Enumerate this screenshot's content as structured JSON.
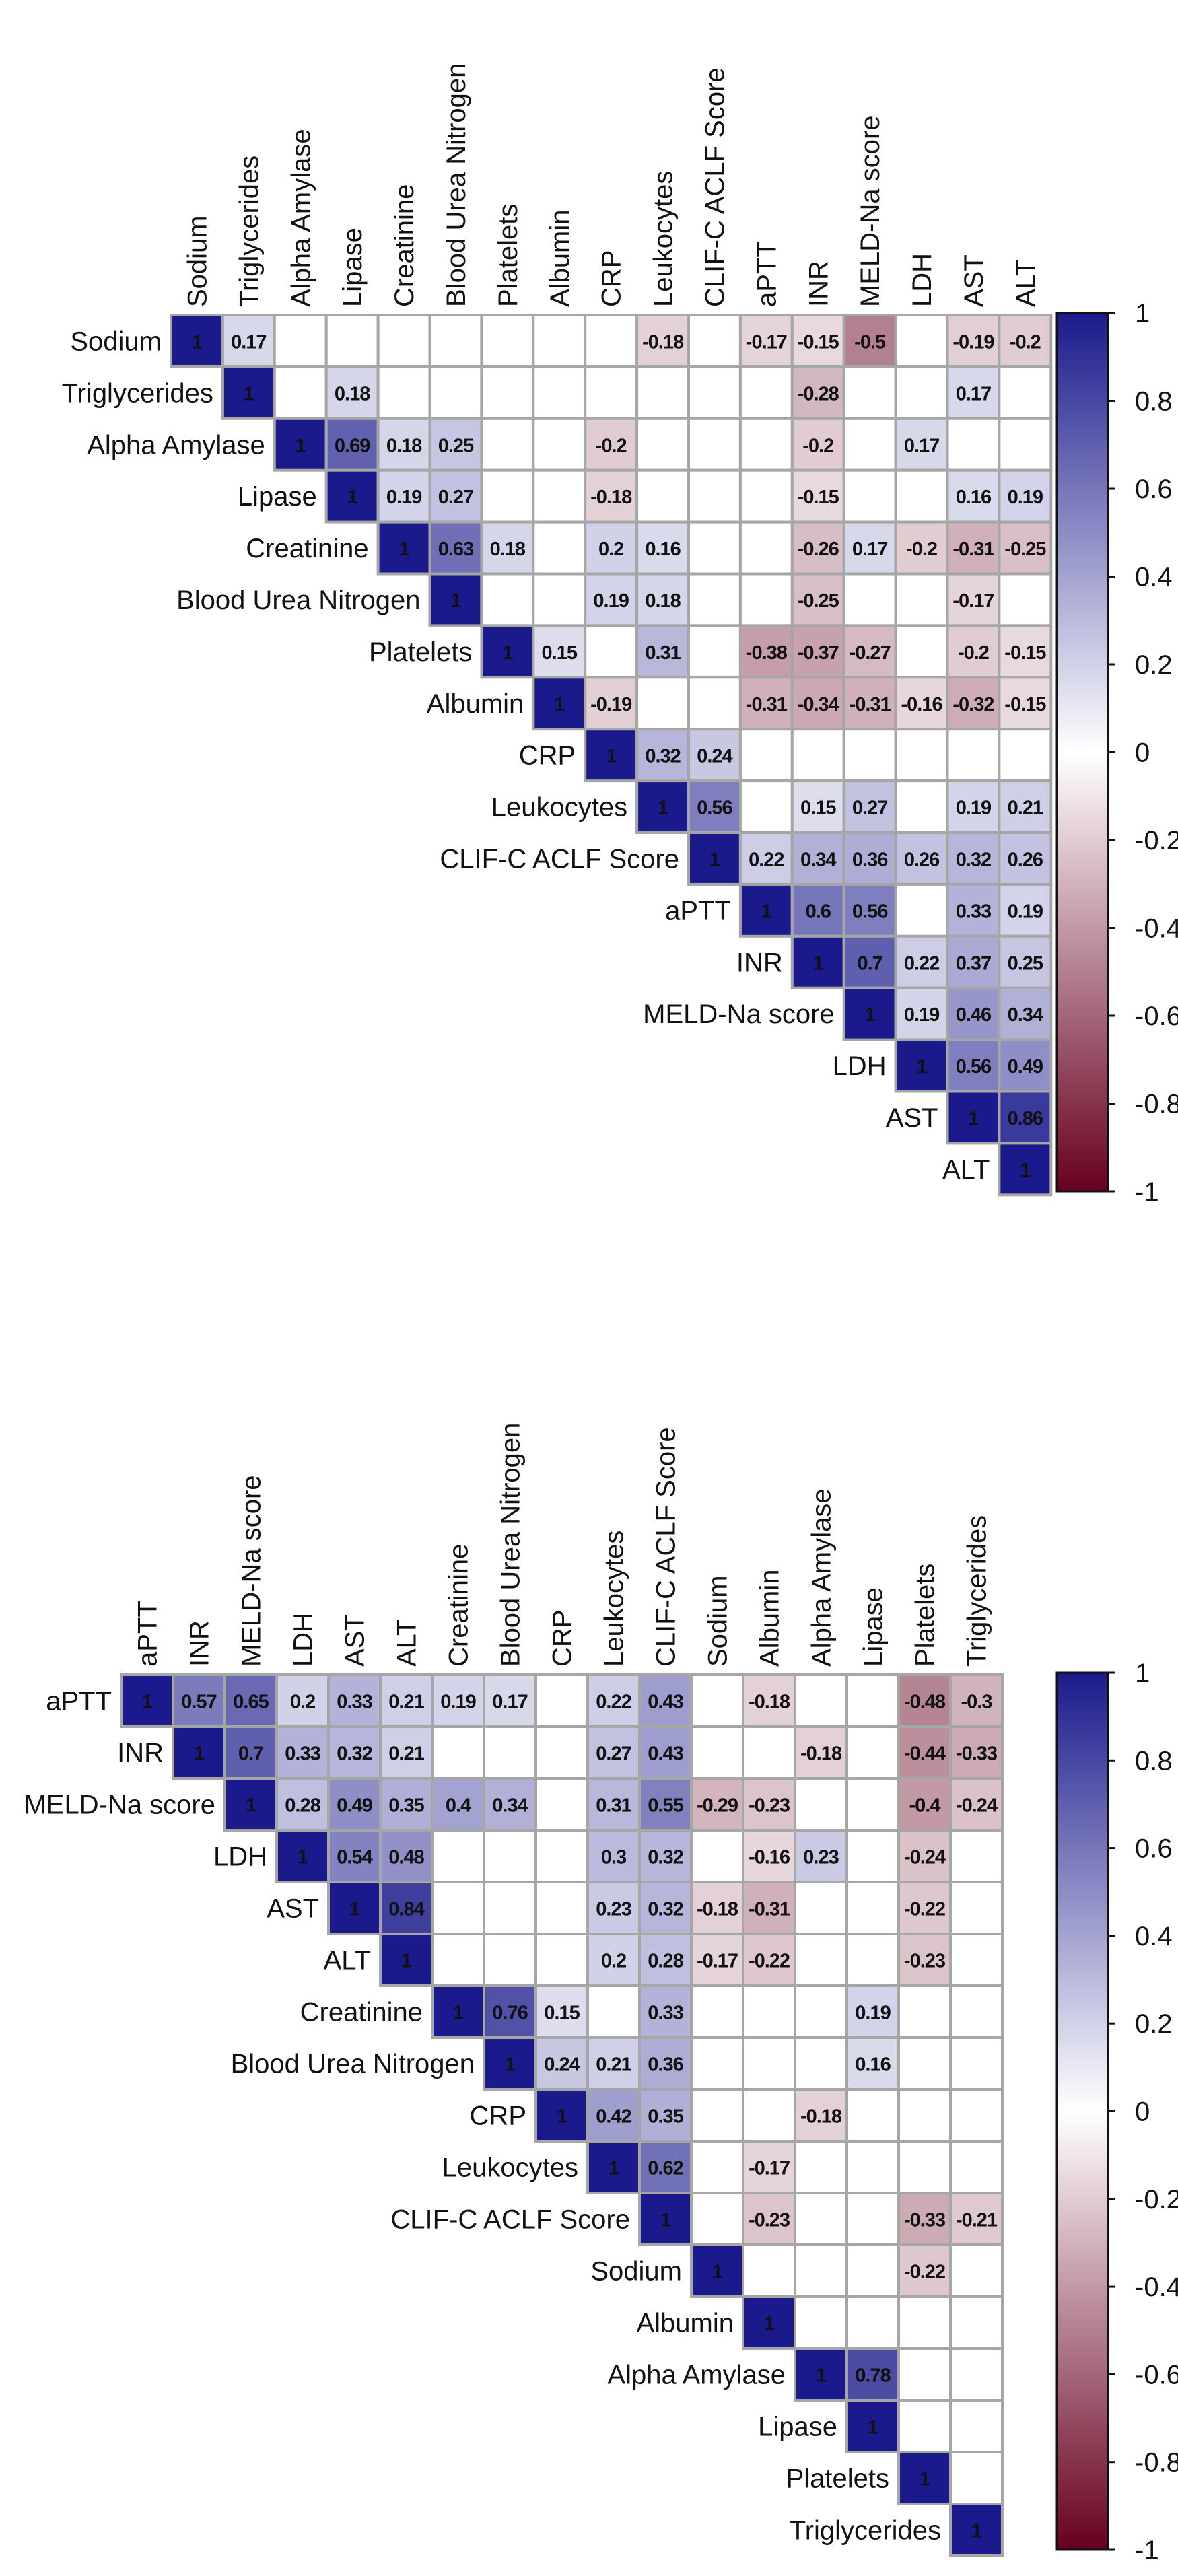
{
  "chart_data": [
    {
      "type": "heatmap",
      "title": "",
      "variables": [
        "Sodium",
        "Triglycerides",
        "Alpha Amylase",
        "Lipase",
        "Creatinine",
        "Blood Urea Nitrogen",
        "Platelets",
        "Albumin",
        "CRP",
        "Leukocytes",
        "CLIF-C ACLF Score",
        "aPTT",
        "INR",
        "MELD-Na score",
        "LDH",
        "AST",
        "ALT"
      ],
      "matrix": [
        [
          1,
          0.17,
          null,
          null,
          null,
          null,
          null,
          null,
          null,
          -0.18,
          null,
          -0.17,
          -0.15,
          -0.5,
          null,
          -0.19,
          -0.2
        ],
        [
          null,
          1,
          null,
          0.18,
          null,
          null,
          null,
          null,
          null,
          null,
          null,
          null,
          -0.28,
          null,
          null,
          0.17,
          null
        ],
        [
          null,
          null,
          1,
          0.69,
          0.18,
          0.25,
          null,
          null,
          -0.2,
          null,
          null,
          null,
          -0.2,
          null,
          0.17,
          null,
          null
        ],
        [
          null,
          null,
          null,
          1,
          0.19,
          0.27,
          null,
          null,
          -0.18,
          null,
          null,
          null,
          -0.15,
          null,
          null,
          0.16,
          0.19
        ],
        [
          null,
          null,
          null,
          null,
          1,
          0.63,
          0.18,
          null,
          0.2,
          0.16,
          null,
          null,
          -0.26,
          0.17,
          -0.2,
          -0.31,
          -0.25
        ],
        [
          null,
          null,
          null,
          null,
          null,
          1,
          null,
          null,
          0.19,
          0.18,
          null,
          null,
          -0.25,
          null,
          null,
          -0.17,
          null
        ],
        [
          null,
          null,
          null,
          null,
          null,
          null,
          1,
          0.15,
          null,
          0.31,
          null,
          -0.38,
          -0.37,
          -0.27,
          null,
          -0.2,
          -0.15
        ],
        [
          null,
          null,
          null,
          null,
          null,
          null,
          null,
          1,
          -0.19,
          null,
          null,
          -0.31,
          -0.34,
          -0.31,
          -0.16,
          -0.32,
          -0.15
        ],
        [
          null,
          null,
          null,
          null,
          null,
          null,
          null,
          null,
          1,
          0.32,
          0.24,
          null,
          null,
          null,
          null,
          null,
          null
        ],
        [
          null,
          null,
          null,
          null,
          null,
          null,
          null,
          null,
          null,
          1,
          0.56,
          null,
          0.15,
          0.27,
          null,
          0.19,
          0.21
        ],
        [
          null,
          null,
          null,
          null,
          null,
          null,
          null,
          null,
          null,
          null,
          1,
          0.22,
          0.34,
          0.36,
          0.26,
          0.32,
          0.26
        ],
        [
          null,
          null,
          null,
          null,
          null,
          null,
          null,
          null,
          null,
          null,
          null,
          1,
          0.6,
          0.56,
          null,
          0.33,
          0.19
        ],
        [
          null,
          null,
          null,
          null,
          null,
          null,
          null,
          null,
          null,
          null,
          null,
          null,
          1,
          0.7,
          0.22,
          0.37,
          0.25
        ],
        [
          null,
          null,
          null,
          null,
          null,
          null,
          null,
          null,
          null,
          null,
          null,
          null,
          null,
          1,
          0.19,
          0.46,
          0.34
        ],
        [
          null,
          null,
          null,
          null,
          null,
          null,
          null,
          null,
          null,
          null,
          null,
          null,
          null,
          null,
          1,
          0.56,
          0.49
        ],
        [
          null,
          null,
          null,
          null,
          null,
          null,
          null,
          null,
          null,
          null,
          null,
          null,
          null,
          null,
          null,
          1,
          0.86
        ],
        [
          null,
          null,
          null,
          null,
          null,
          null,
          null,
          null,
          null,
          null,
          null,
          null,
          null,
          null,
          null,
          null,
          1
        ]
      ],
      "colorbar": {
        "ticks": [
          "1",
          "0.8",
          "0.6",
          "0.4",
          "0.2",
          "0",
          "-0.2",
          "-0.4",
          "-0.6",
          "-0.8",
          "-1"
        ],
        "range": [
          -1,
          1
        ],
        "color_neg": "#67001F",
        "color_mid": "#FFFFFF",
        "color_pos": "#1A1A8C"
      }
    },
    {
      "type": "heatmap",
      "title": "",
      "variables": [
        "aPTT",
        "INR",
        "MELD-Na score",
        "LDH",
        "AST",
        "ALT",
        "Creatinine",
        "Blood Urea Nitrogen",
        "CRP",
        "Leukocytes",
        "CLIF-C ACLF Score",
        "Sodium",
        "Albumin",
        "Alpha Amylase",
        "Lipase",
        "Platelets",
        "Triglycerides"
      ],
      "matrix": [
        [
          1,
          0.57,
          0.65,
          0.2,
          0.33,
          0.21,
          0.19,
          0.17,
          null,
          0.22,
          0.43,
          null,
          -0.18,
          null,
          null,
          -0.48,
          -0.3
        ],
        [
          null,
          1,
          0.7,
          0.33,
          0.32,
          0.21,
          null,
          null,
          null,
          0.27,
          0.43,
          null,
          null,
          -0.18,
          null,
          -0.44,
          -0.33
        ],
        [
          null,
          null,
          1,
          0.28,
          0.49,
          0.35,
          0.4,
          0.34,
          null,
          0.31,
          0.55,
          -0.29,
          -0.23,
          null,
          null,
          -0.4,
          -0.24
        ],
        [
          null,
          null,
          null,
          1,
          0.54,
          0.48,
          null,
          null,
          null,
          0.3,
          0.32,
          null,
          -0.16,
          0.23,
          null,
          -0.24,
          null
        ],
        [
          null,
          null,
          null,
          null,
          1,
          0.84,
          null,
          null,
          null,
          0.23,
          0.32,
          -0.18,
          -0.31,
          null,
          null,
          -0.22,
          null
        ],
        [
          null,
          null,
          null,
          null,
          null,
          1,
          null,
          null,
          null,
          0.2,
          0.28,
          -0.17,
          -0.22,
          null,
          null,
          -0.23,
          null
        ],
        [
          null,
          null,
          null,
          null,
          null,
          null,
          1,
          0.76,
          0.15,
          null,
          0.33,
          null,
          null,
          null,
          0.19,
          null,
          null
        ],
        [
          null,
          null,
          null,
          null,
          null,
          null,
          null,
          1,
          0.24,
          0.21,
          0.36,
          null,
          null,
          null,
          0.16,
          null,
          null
        ],
        [
          null,
          null,
          null,
          null,
          null,
          null,
          null,
          null,
          1,
          0.42,
          0.35,
          null,
          null,
          -0.18,
          null,
          null,
          null
        ],
        [
          null,
          null,
          null,
          null,
          null,
          null,
          null,
          null,
          null,
          1,
          0.62,
          null,
          -0.17,
          null,
          null,
          null,
          null
        ],
        [
          null,
          null,
          null,
          null,
          null,
          null,
          null,
          null,
          null,
          null,
          1,
          null,
          -0.23,
          null,
          null,
          -0.33,
          -0.21
        ],
        [
          null,
          null,
          null,
          null,
          null,
          null,
          null,
          null,
          null,
          null,
          null,
          1,
          null,
          null,
          null,
          -0.22,
          null
        ],
        [
          null,
          null,
          null,
          null,
          null,
          null,
          null,
          null,
          null,
          null,
          null,
          null,
          1,
          null,
          null,
          null,
          null
        ],
        [
          null,
          null,
          null,
          null,
          null,
          null,
          null,
          null,
          null,
          null,
          null,
          null,
          null,
          1,
          0.78,
          null,
          null
        ],
        [
          null,
          null,
          null,
          null,
          null,
          null,
          null,
          null,
          null,
          null,
          null,
          null,
          null,
          null,
          1,
          null,
          null
        ],
        [
          null,
          null,
          null,
          null,
          null,
          null,
          null,
          null,
          null,
          null,
          null,
          null,
          null,
          null,
          null,
          1,
          null
        ],
        [
          null,
          null,
          null,
          null,
          null,
          null,
          null,
          null,
          null,
          null,
          null,
          null,
          null,
          null,
          null,
          null,
          1
        ]
      ],
      "colorbar": {
        "ticks": [
          "1",
          "0.8",
          "0.6",
          "0.4",
          "0.2",
          "0",
          "-0.2",
          "-0.4",
          "-0.6",
          "-0.8",
          "-1"
        ],
        "range": [
          -1,
          1
        ],
        "color_neg": "#67001F",
        "color_mid": "#FFFFFF",
        "color_pos": "#1A1A8C"
      }
    }
  ]
}
